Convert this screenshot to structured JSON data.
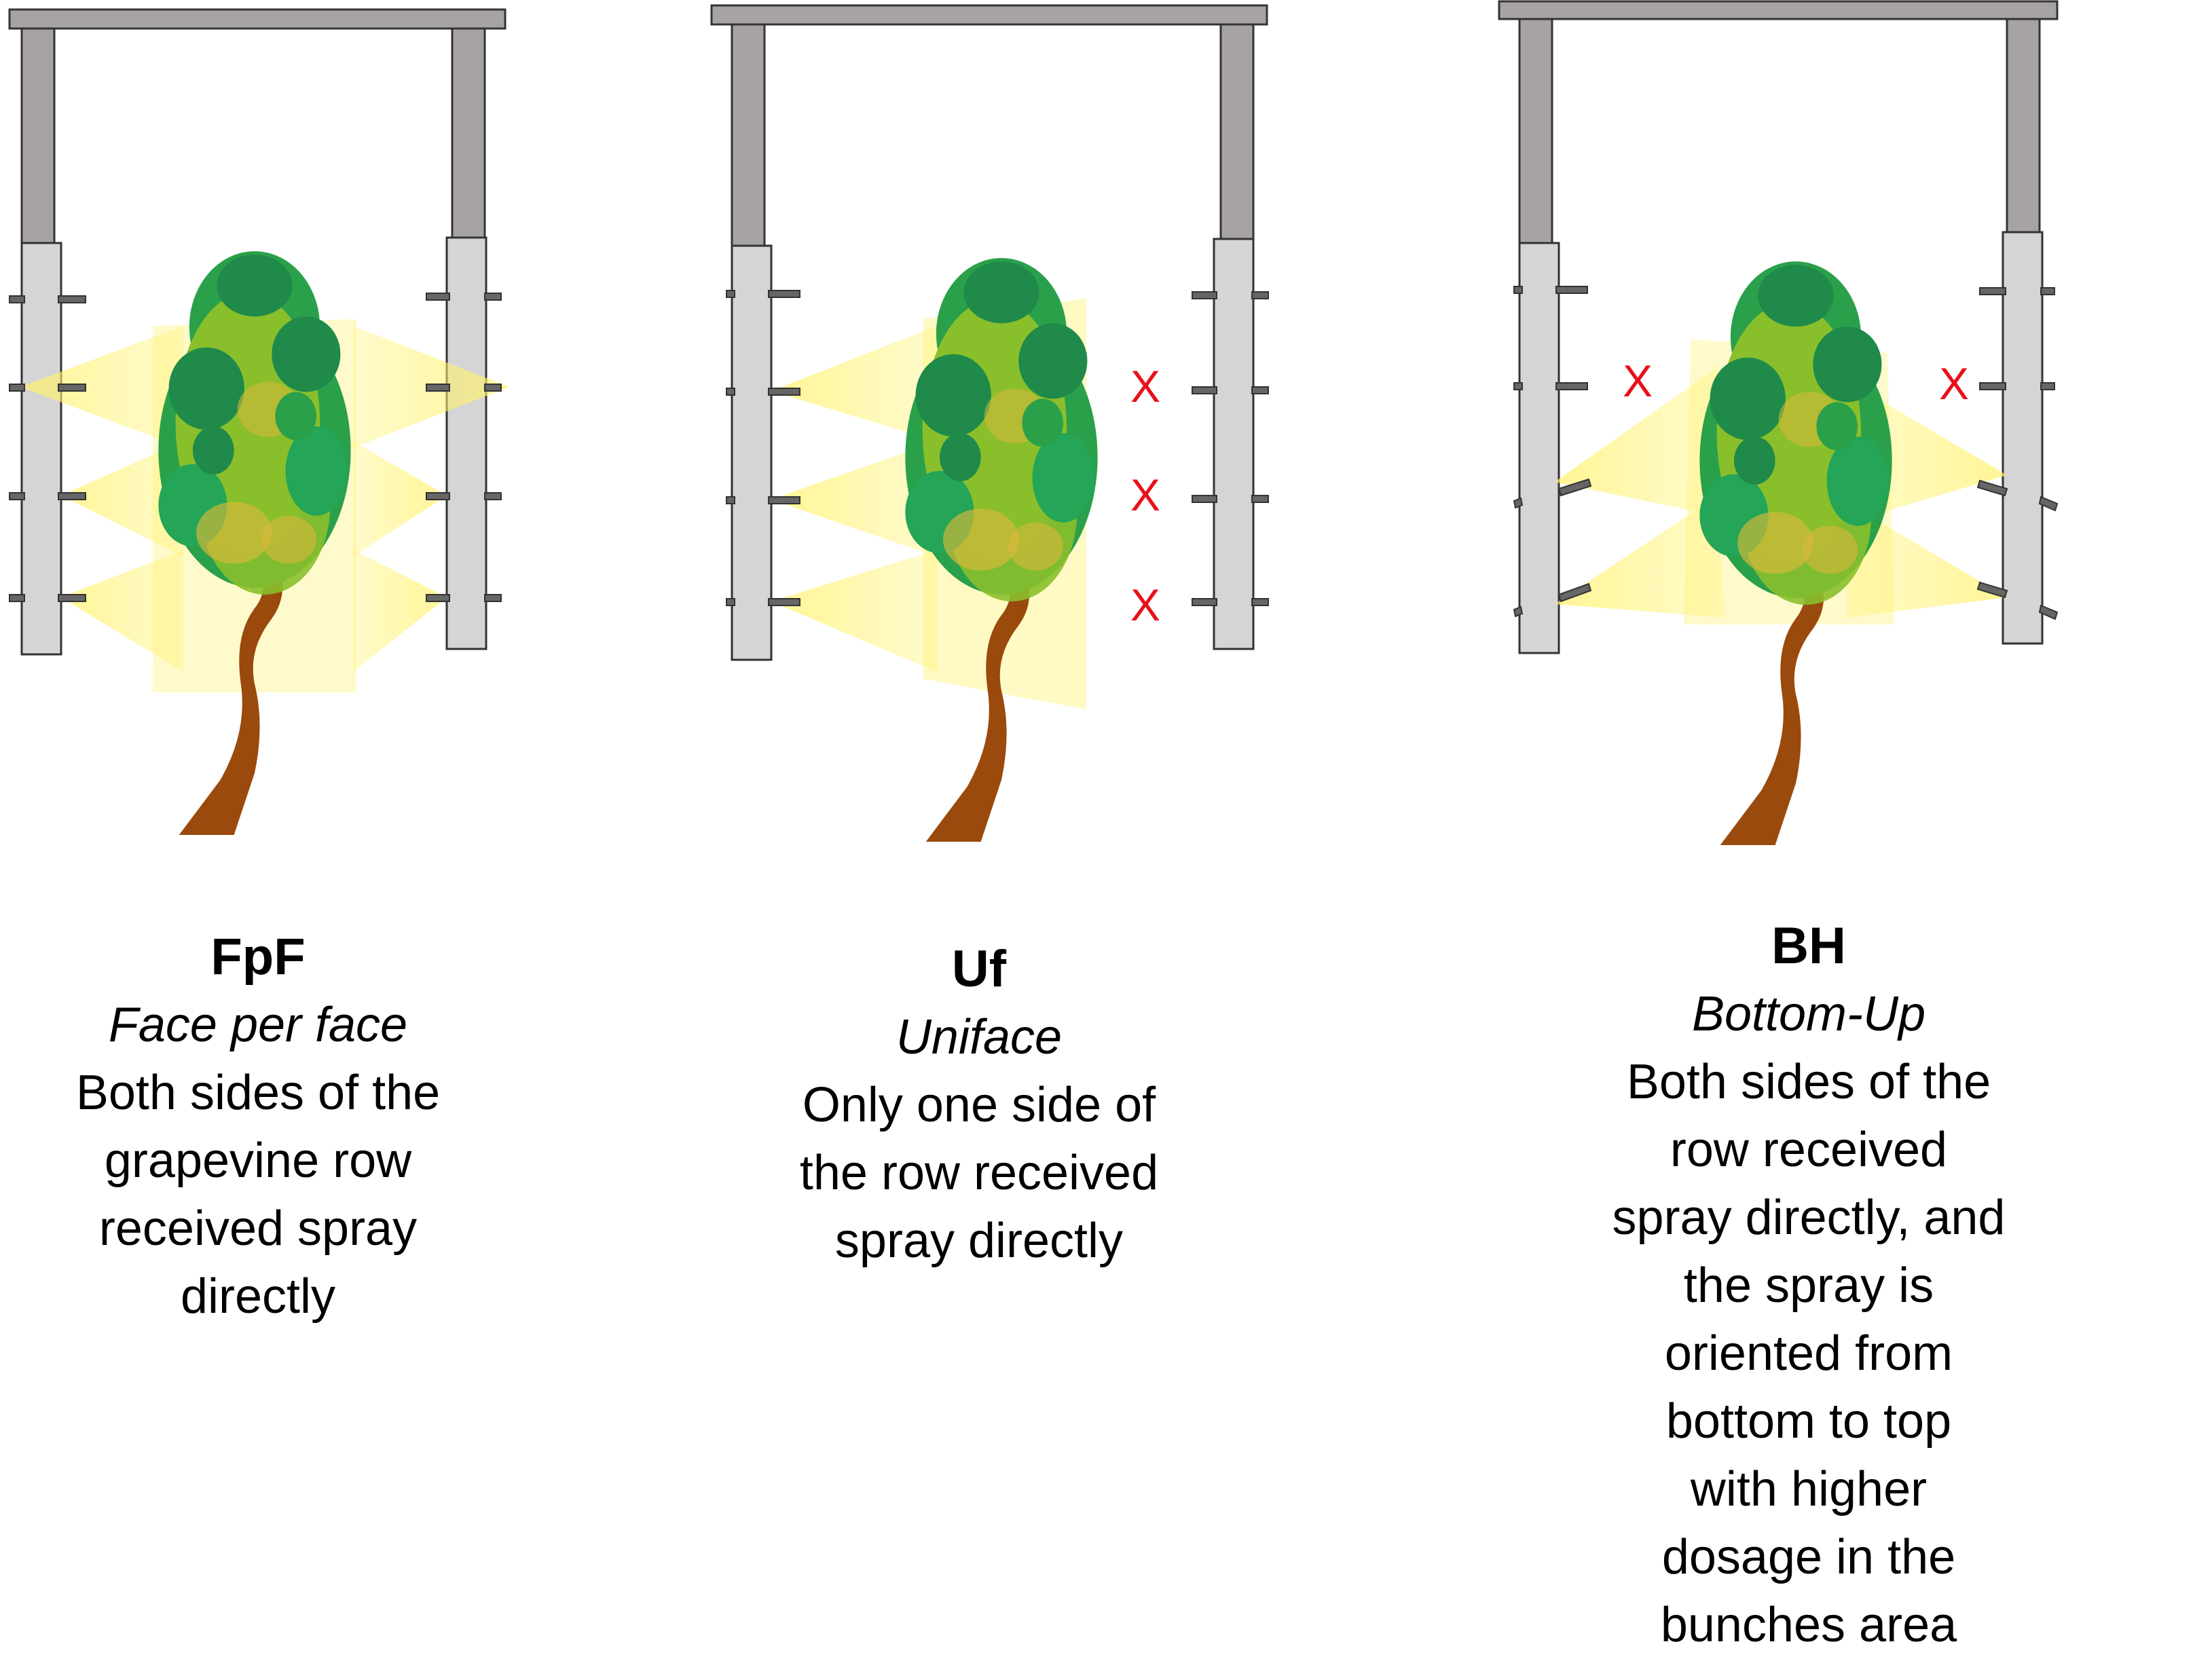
{
  "colors": {
    "frame_dark": "#a7a3a3",
    "frame_light": "#d5d5d5",
    "frame_stroke": "#333333",
    "nozzle": "#666666",
    "spray": "#fff26a",
    "leaf_dark": "#2aa04a",
    "leaf_light": "#8abf2c",
    "leaf_yellow": "#d9b83a",
    "trunk": "#9a4a0c",
    "x_mark": "#e8101a"
  },
  "panels": [
    {
      "id": "fpf",
      "code": "FpF",
      "name": "Face per face",
      "description_lines": [
        "Both sides of the",
        "grapevine row",
        "received spray",
        "directly"
      ],
      "sprayed_sides": [
        "left",
        "right"
      ],
      "orientation": "horizontal",
      "x_marks": [
        "",
        ""
      ]
    },
    {
      "id": "uf",
      "code": "Uf",
      "name": "Uniface",
      "description_lines": [
        "Only one side of",
        "the row received",
        "spray directly"
      ],
      "sprayed_sides": [
        "left"
      ],
      "orientation": "horizontal",
      "x_marks": [
        "X",
        "X",
        "X"
      ]
    },
    {
      "id": "bh",
      "code": "BH",
      "name": "Bottom-Up",
      "description_lines": [
        "Both sides of the row received",
        "spray directly, and the spray is",
        "oriented from bottom to top",
        "with higher dosage in the",
        "bunches area"
      ],
      "sprayed_sides": [
        "left",
        "right"
      ],
      "orientation": "upward",
      "x_marks": [
        "X",
        "X"
      ]
    }
  ]
}
